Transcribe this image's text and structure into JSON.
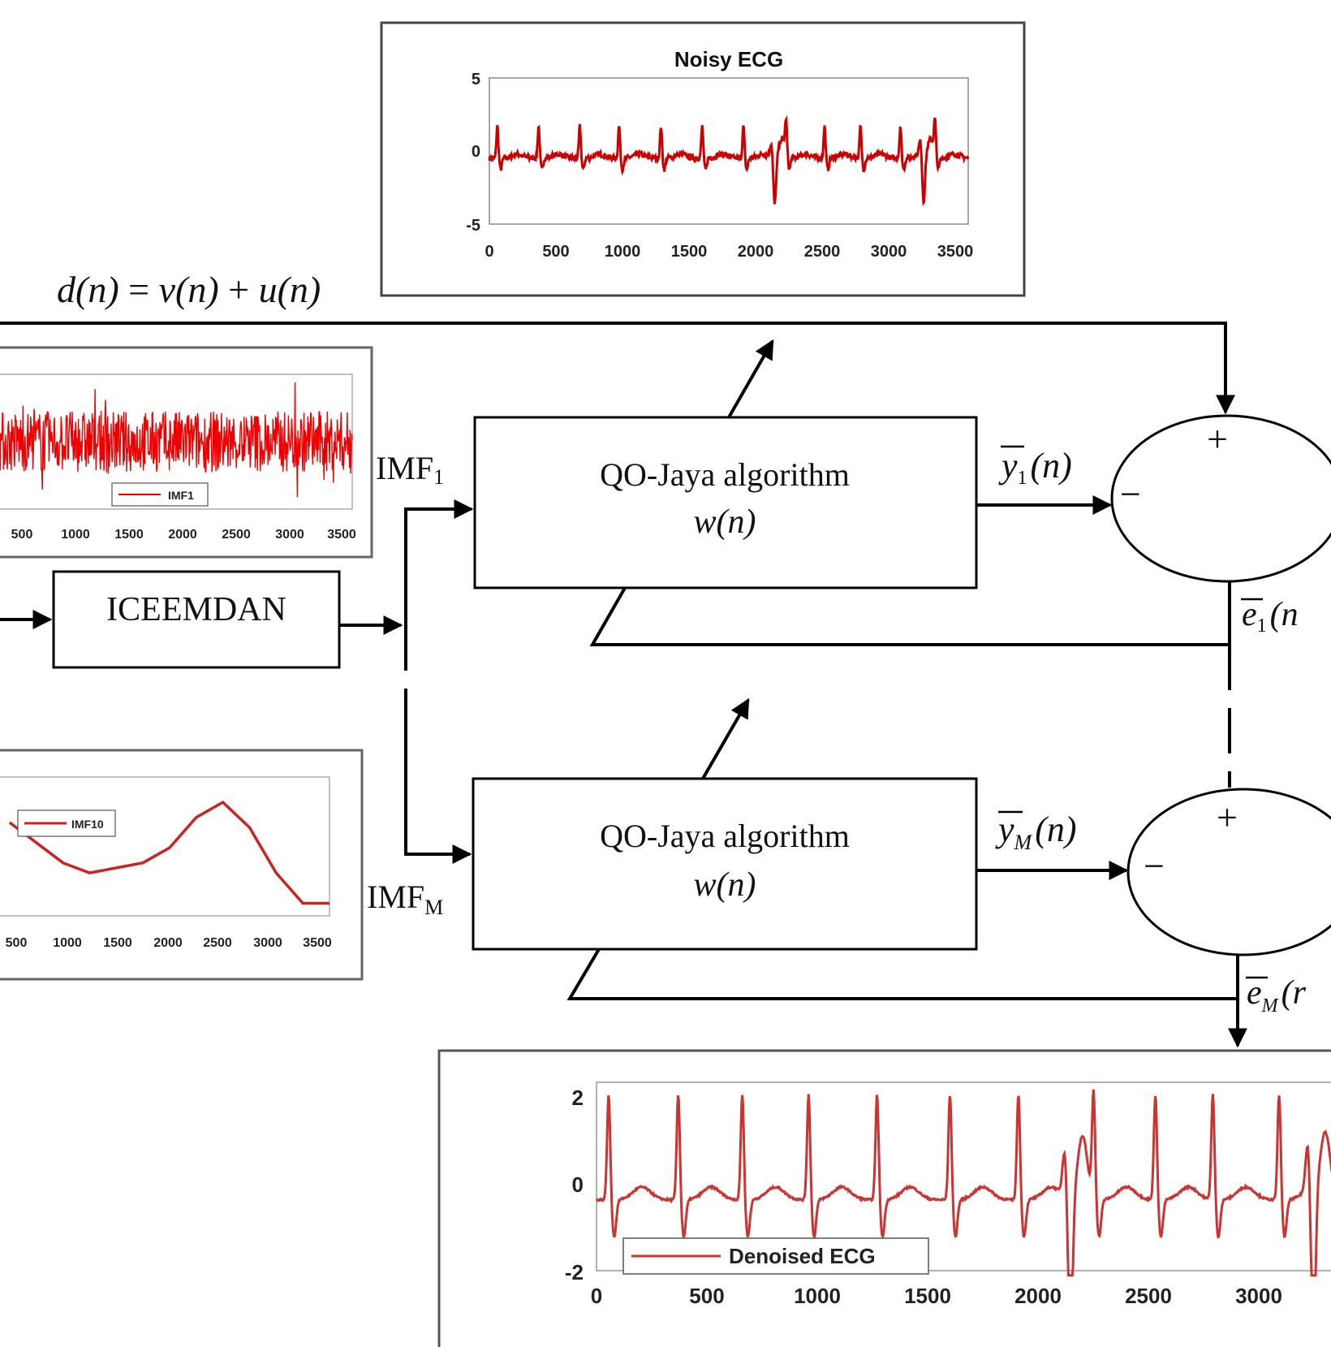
{
  "equation": {
    "lhs": "d(n)",
    "eq": " = ",
    "rhs1": "v(n)",
    "plus": " + ",
    "rhs2": "u(n)"
  },
  "blocks": {
    "decomposition": "ICEEMDAN",
    "adaptive_filter_1": {
      "line1": "QO-Jaya algorithm",
      "line2": "w(n)"
    },
    "adaptive_filter_m": {
      "line1": "QO-Jaya algorithm",
      "line2": "w(n)"
    }
  },
  "signals": {
    "imf1": {
      "base": "IMF",
      "sub": "1"
    },
    "imfm": {
      "base": "IMF",
      "sub": "M"
    },
    "y1": {
      "base": "y",
      "sub": "1",
      "arg": "(n)"
    },
    "ym": {
      "base": "y",
      "sub": "M",
      "arg": "(n)"
    },
    "e1": {
      "base": "e",
      "sub": "1",
      "arg": "(n"
    },
    "em": {
      "base": "e",
      "sub": "M",
      "arg": "(r"
    }
  },
  "summers": {
    "top": {
      "plus": "+",
      "minus": "−"
    },
    "bottom": {
      "plus": "+",
      "minus": "−"
    }
  },
  "chart_data": [
    {
      "id": "noisy",
      "type": "line",
      "title": "Noisy ECG",
      "series": [],
      "xlim": [
        0,
        3600
      ],
      "ylim": [
        -5,
        5
      ],
      "xticks": [
        "0",
        "500",
        "1000",
        "1500",
        "2000",
        "2500",
        "3000",
        "3500"
      ],
      "yticks": [
        "5",
        "0",
        "-5"
      ],
      "grid": false,
      "line_color": "#cc0000",
      "r_peaks": [
        60,
        370,
        680,
        975,
        1290,
        1600,
        1910,
        2230,
        2520,
        2790,
        3090,
        3350
      ],
      "ectopic_beats": [
        2140,
        3260
      ]
    },
    {
      "id": "imf1",
      "type": "line",
      "title": "",
      "series": [
        {
          "name": "IMF1"
        }
      ],
      "xlim": [
        0,
        3600
      ],
      "ylim": [
        -1.2,
        1.2
      ],
      "xticks": [
        "500",
        "1000",
        "1500",
        "2000",
        "2500",
        "3000",
        "3500"
      ],
      "grid": false,
      "legend": "bottom-center",
      "line_color": "#ee0000"
    },
    {
      "id": "imf10",
      "type": "line",
      "title": "",
      "series": [
        {
          "name": "IMF10"
        }
      ],
      "x": [
        0,
        300,
        600,
        900,
        1200,
        1500,
        1800,
        2100,
        2400,
        2700,
        3000,
        3300,
        3600
      ],
      "y": [
        0.12,
        0.04,
        -0.04,
        -0.08,
        -0.06,
        -0.04,
        0.02,
        0.14,
        0.2,
        0.1,
        -0.08,
        -0.2,
        -0.2
      ],
      "xlim": [
        0,
        3600
      ],
      "ylim": [
        -0.25,
        0.3
      ],
      "xticks": [
        "500",
        "1000",
        "1500",
        "2000",
        "2500",
        "3000",
        "3500"
      ],
      "grid": false,
      "legend": "top-left",
      "line_color": "#cc2222"
    },
    {
      "id": "denoised",
      "type": "line",
      "title": "",
      "series": [
        {
          "name": "Denoised ECG"
        }
      ],
      "xlim": [
        0,
        3300
      ],
      "ylim": [
        -2,
        2
      ],
      "xticks": [
        "0",
        "500",
        "1000",
        "1500",
        "2000",
        "2500",
        "3000"
      ],
      "yticks": [
        "2",
        "0",
        "-2"
      ],
      "grid": false,
      "legend": "bottom-left",
      "line_color": "#cc3333",
      "r_peaks": [
        55,
        370,
        660,
        960,
        1270,
        1600,
        1910,
        2250,
        2530,
        2790,
        3090
      ],
      "ectopic_beats": [
        2140,
        3240
      ]
    }
  ]
}
